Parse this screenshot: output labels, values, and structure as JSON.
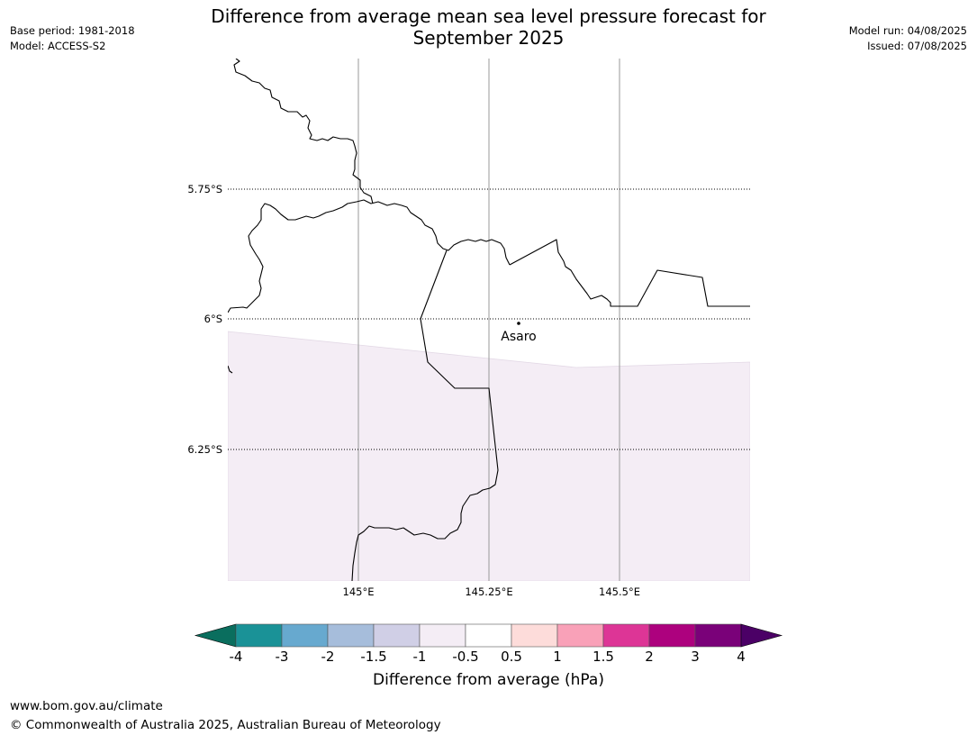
{
  "header": {
    "title_line1": "Difference from average mean sea level pressure forecast for",
    "title_line2": "September 2025",
    "base_period": "Base period: 1981-2018",
    "model": "Model: ACCESS-S2",
    "model_run": "Model run: 04/08/2025",
    "issued": "Issued: 07/08/2025"
  },
  "map": {
    "latitude_labels": [
      "5.75°S",
      "6°S",
      "6.25°S"
    ],
    "longitude_labels": [
      "145°E",
      "145.25°E",
      "145.5°E"
    ],
    "place_label": "Asaro",
    "fill_color_shaded": "#f4edf5",
    "coastline_color": "#000000",
    "gridline_color": "#999999"
  },
  "colorbar": {
    "label": "Difference from average (hPa)",
    "ticks": [
      "-4",
      "-3",
      "-2",
      "-1.5",
      "-1",
      "-0.5",
      "0.5",
      "1",
      "1.5",
      "2",
      "3",
      "4"
    ],
    "under_color": "#0a6e5e",
    "over_color": "#4b0066",
    "colors": [
      "#1a9297",
      "#67a9cf",
      "#a6bddb",
      "#d0cfe6",
      "#f4edf5",
      "#ffffff",
      "#fddcda",
      "#f9a1b8",
      "#dd3596",
      "#ad017e",
      "#7a0179"
    ]
  },
  "footer": {
    "url": "www.bom.gov.au/climate",
    "copyright": "© Commonwealth of Australia 2025, Australian Bureau of Meteorology"
  }
}
